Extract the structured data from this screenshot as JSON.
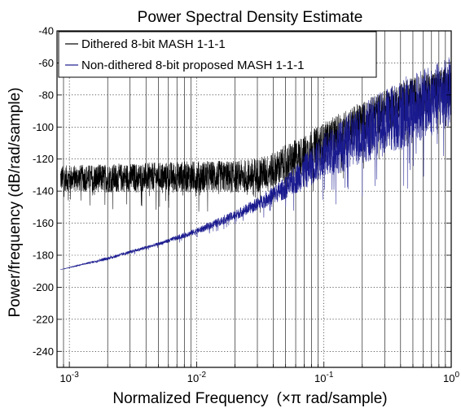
{
  "chart_data": {
    "type": "line",
    "title": "Power Spectral Density Estimate",
    "xlabel_main": "Normalized Frequency",
    "xlabel_unit": "(×π rad/sample)",
    "ylabel": "Power/frequency (dB/rad/sample)",
    "x_scale": "log",
    "xlim": [
      0.0008,
      1
    ],
    "ylim": [
      -250,
      -40
    ],
    "x_ticks": [
      {
        "value": 0.001,
        "base": "10",
        "exp": "-3"
      },
      {
        "value": 0.01,
        "base": "10",
        "exp": "-2"
      },
      {
        "value": 0.1,
        "base": "10",
        "exp": "-1"
      },
      {
        "value": 1,
        "base": "10",
        "exp": "0"
      }
    ],
    "y_ticks": [
      -40,
      -60,
      -80,
      -100,
      -120,
      -140,
      -160,
      -180,
      -200,
      -220,
      -240
    ],
    "grid": true,
    "legend_position": "top-left",
    "series": [
      {
        "name": "Dithered 8-bit MASH 1-1-1",
        "color": "#000000",
        "x": [
          0.00085,
          0.002,
          0.005,
          0.01,
          0.02,
          0.03,
          0.04,
          0.05,
          0.07,
          0.1,
          0.15,
          0.2,
          0.3,
          0.4,
          0.5,
          0.6,
          0.7,
          0.8,
          0.9,
          1.0
        ],
        "center": [
          -132,
          -132,
          -131,
          -131,
          -131,
          -130,
          -127,
          -123,
          -117,
          -110,
          -102,
          -97,
          -90,
          -85,
          -82,
          -80,
          -78,
          -77,
          -76,
          -75
        ],
        "spread": [
          8,
          9,
          9,
          10,
          10,
          11,
          11,
          12,
          12,
          13,
          13,
          13,
          13,
          13,
          13,
          13,
          13,
          13,
          13,
          13
        ]
      },
      {
        "name": "Non-dithered 8-bit proposed MASH 1-1-1",
        "color": "#1a1a8f",
        "x": [
          0.00085,
          0.002,
          0.005,
          0.01,
          0.02,
          0.03,
          0.05,
          0.07,
          0.1,
          0.15,
          0.2,
          0.3,
          0.4,
          0.5,
          0.6,
          0.7,
          0.8,
          0.9,
          1.0
        ],
        "center": [
          -189,
          -182,
          -173,
          -165,
          -155,
          -148,
          -138,
          -128,
          -118,
          -110,
          -104,
          -97,
          -92,
          -88,
          -86,
          -83,
          -81,
          -79,
          -78
        ],
        "spread": [
          0,
          1,
          1,
          2,
          3,
          4,
          7,
          11,
          14,
          17,
          19,
          21,
          22,
          22,
          22,
          22,
          22,
          22,
          22
        ]
      }
    ]
  }
}
